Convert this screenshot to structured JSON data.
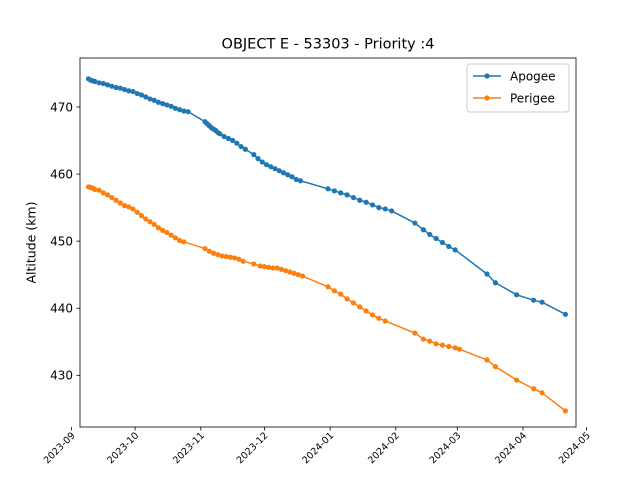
{
  "chart_data": {
    "type": "line",
    "title": "OBJECT E - 53303 - Priority :4",
    "xlabel": "",
    "ylabel": "Altitude (km)",
    "xlim": [
      "2023-09-05",
      "2024-04-26"
    ],
    "ylim": [
      422.3,
      477.3
    ],
    "yticks": [
      430,
      440,
      450,
      460,
      470
    ],
    "xticks": [
      "2023-09-01",
      "2023-10-01",
      "2023-11-01",
      "2023-12-01",
      "2024-01-01",
      "2024-02-01",
      "2024-03-01",
      "2024-04-01",
      "2024-05-01"
    ],
    "xtick_labels": [
      "2023-09",
      "2023-10",
      "2023-11",
      "2023-12",
      "2024-01",
      "2024-02",
      "2024-03",
      "2024-04",
      "2024-05"
    ],
    "grid": false,
    "legend": "top-right",
    "series": [
      {
        "name": "Apogee",
        "color": "#1f77b4",
        "marker": "circle",
        "points": [
          [
            "2023-09-09",
            474.2
          ],
          [
            "2023-09-10",
            474.0
          ],
          [
            "2023-09-11",
            473.9
          ],
          [
            "2023-09-12",
            473.8
          ],
          [
            "2023-09-14",
            473.6
          ],
          [
            "2023-09-16",
            473.5
          ],
          [
            "2023-09-18",
            473.3
          ],
          [
            "2023-09-20",
            473.1
          ],
          [
            "2023-09-22",
            472.9
          ],
          [
            "2023-09-24",
            472.8
          ],
          [
            "2023-09-26",
            472.6
          ],
          [
            "2023-09-28",
            472.4
          ],
          [
            "2023-09-30",
            472.3
          ],
          [
            "2023-10-02",
            472.0
          ],
          [
            "2023-10-04",
            471.8
          ],
          [
            "2023-10-06",
            471.5
          ],
          [
            "2023-10-08",
            471.2
          ],
          [
            "2023-10-10",
            471.0
          ],
          [
            "2023-10-12",
            470.7
          ],
          [
            "2023-10-14",
            470.5
          ],
          [
            "2023-10-16",
            470.3
          ],
          [
            "2023-10-18",
            470.1
          ],
          [
            "2023-10-20",
            469.8
          ],
          [
            "2023-10-22",
            469.6
          ],
          [
            "2023-10-24",
            469.4
          ],
          [
            "2023-10-26",
            469.3
          ],
          [
            "2023-11-03",
            467.8
          ],
          [
            "2023-11-04",
            467.5
          ],
          [
            "2023-11-05",
            467.2
          ],
          [
            "2023-11-06",
            466.9
          ],
          [
            "2023-11-07",
            466.7
          ],
          [
            "2023-11-08",
            466.5
          ],
          [
            "2023-11-09",
            466.2
          ],
          [
            "2023-11-10",
            466.0
          ],
          [
            "2023-11-12",
            465.6
          ],
          [
            "2023-11-14",
            465.3
          ],
          [
            "2023-11-16",
            465.0
          ],
          [
            "2023-11-18",
            464.6
          ],
          [
            "2023-11-20",
            464.1
          ],
          [
            "2023-11-22",
            463.7
          ],
          [
            "2023-11-26",
            462.9
          ],
          [
            "2023-11-28",
            462.3
          ],
          [
            "2023-11-30",
            461.8
          ],
          [
            "2023-12-02",
            461.4
          ],
          [
            "2023-12-04",
            461.1
          ],
          [
            "2023-12-06",
            460.8
          ],
          [
            "2023-12-08",
            460.5
          ],
          [
            "2023-12-10",
            460.2
          ],
          [
            "2023-12-12",
            459.9
          ],
          [
            "2023-12-14",
            459.6
          ],
          [
            "2023-12-16",
            459.2
          ],
          [
            "2023-12-18",
            459.0
          ],
          [
            "2023-12-31",
            457.8
          ],
          [
            "2024-01-03",
            457.5
          ],
          [
            "2024-01-06",
            457.2
          ],
          [
            "2024-01-09",
            456.9
          ],
          [
            "2024-01-12",
            456.5
          ],
          [
            "2024-01-15",
            456.1
          ],
          [
            "2024-01-18",
            455.8
          ],
          [
            "2024-01-21",
            455.4
          ],
          [
            "2024-01-24",
            455.0
          ],
          [
            "2024-01-27",
            454.8
          ],
          [
            "2024-01-30",
            454.5
          ],
          [
            "2024-02-10",
            452.7
          ],
          [
            "2024-02-14",
            451.7
          ],
          [
            "2024-02-17",
            451.0
          ],
          [
            "2024-02-20",
            450.4
          ],
          [
            "2024-02-23",
            449.8
          ],
          [
            "2024-02-26",
            449.2
          ],
          [
            "2024-02-29",
            448.7
          ],
          [
            "2024-03-15",
            445.1
          ],
          [
            "2024-03-19",
            443.8
          ],
          [
            "2024-03-29",
            442.0
          ],
          [
            "2024-04-06",
            441.2
          ],
          [
            "2024-04-10",
            440.9
          ],
          [
            "2024-04-21",
            439.1
          ]
        ]
      },
      {
        "name": "Perigee",
        "color": "#ff7f0e",
        "marker": "circle",
        "points": [
          [
            "2023-09-09",
            458.1
          ],
          [
            "2023-09-10",
            458.0
          ],
          [
            "2023-09-11",
            457.9
          ],
          [
            "2023-09-12",
            457.7
          ],
          [
            "2023-09-14",
            457.6
          ],
          [
            "2023-09-16",
            457.2
          ],
          [
            "2023-09-18",
            456.9
          ],
          [
            "2023-09-20",
            456.5
          ],
          [
            "2023-09-22",
            456.1
          ],
          [
            "2023-09-24",
            455.7
          ],
          [
            "2023-09-26",
            455.3
          ],
          [
            "2023-09-28",
            455.1
          ],
          [
            "2023-09-30",
            454.8
          ],
          [
            "2023-10-02",
            454.3
          ],
          [
            "2023-10-04",
            453.8
          ],
          [
            "2023-10-06",
            453.3
          ],
          [
            "2023-10-08",
            452.9
          ],
          [
            "2023-10-10",
            452.5
          ],
          [
            "2023-10-12",
            452.0
          ],
          [
            "2023-10-14",
            451.6
          ],
          [
            "2023-10-16",
            451.3
          ],
          [
            "2023-10-18",
            450.9
          ],
          [
            "2023-10-20",
            450.5
          ],
          [
            "2023-10-22",
            450.1
          ],
          [
            "2023-10-24",
            449.9
          ],
          [
            "2023-11-03",
            448.9
          ],
          [
            "2023-11-05",
            448.5
          ],
          [
            "2023-11-07",
            448.2
          ],
          [
            "2023-11-09",
            448.0
          ],
          [
            "2023-11-11",
            447.8
          ],
          [
            "2023-11-13",
            447.7
          ],
          [
            "2023-11-15",
            447.6
          ],
          [
            "2023-11-17",
            447.5
          ],
          [
            "2023-11-19",
            447.3
          ],
          [
            "2023-11-21",
            447.0
          ],
          [
            "2023-11-26",
            446.6
          ],
          [
            "2023-11-29",
            446.3
          ],
          [
            "2023-12-01",
            446.2
          ],
          [
            "2023-12-03",
            446.1
          ],
          [
            "2023-12-05",
            446.0
          ],
          [
            "2023-12-07",
            446.0
          ],
          [
            "2023-12-09",
            445.8
          ],
          [
            "2023-12-11",
            445.6
          ],
          [
            "2023-12-13",
            445.4
          ],
          [
            "2023-12-15",
            445.2
          ],
          [
            "2023-12-17",
            445.0
          ],
          [
            "2023-12-19",
            444.8
          ],
          [
            "2023-12-31",
            443.2
          ],
          [
            "2024-01-03",
            442.6
          ],
          [
            "2024-01-06",
            442.1
          ],
          [
            "2024-01-09",
            441.4
          ],
          [
            "2024-01-12",
            440.8
          ],
          [
            "2024-01-15",
            440.2
          ],
          [
            "2024-01-18",
            439.6
          ],
          [
            "2024-01-21",
            439.0
          ],
          [
            "2024-01-24",
            438.5
          ],
          [
            "2024-01-27",
            438.1
          ],
          [
            "2024-02-10",
            436.3
          ],
          [
            "2024-02-14",
            435.4
          ],
          [
            "2024-02-17",
            435.1
          ],
          [
            "2024-02-20",
            434.7
          ],
          [
            "2024-02-23",
            434.5
          ],
          [
            "2024-02-26",
            434.3
          ],
          [
            "2024-02-29",
            434.1
          ],
          [
            "2024-03-02",
            433.9
          ],
          [
            "2024-03-15",
            432.3
          ],
          [
            "2024-03-19",
            431.3
          ],
          [
            "2024-03-29",
            429.3
          ],
          [
            "2024-04-06",
            428.0
          ],
          [
            "2024-04-10",
            427.4
          ],
          [
            "2024-04-21",
            424.7
          ]
        ]
      }
    ]
  }
}
